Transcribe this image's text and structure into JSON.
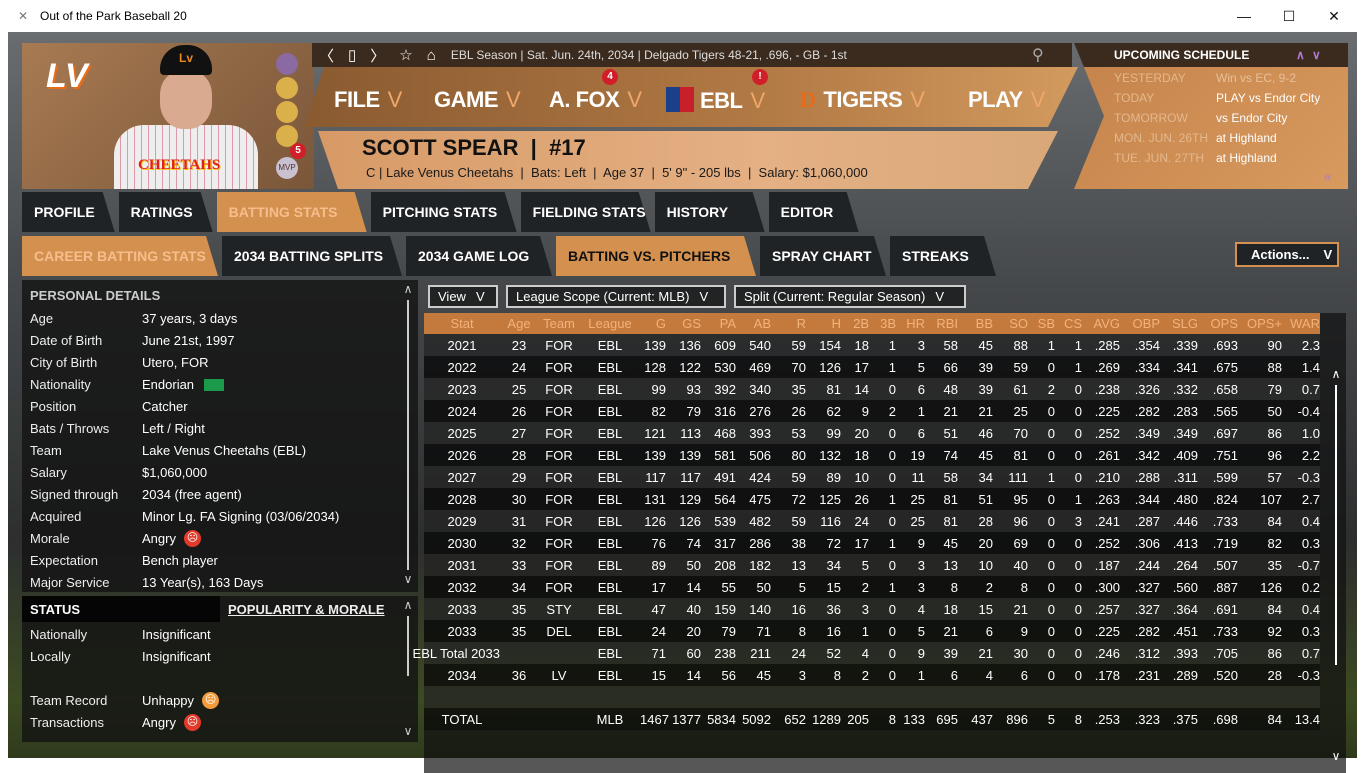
{
  "window": {
    "title": "Out of the Park Baseball 20",
    "minimize": "—",
    "maximize": "☐",
    "close": "✕"
  },
  "topbar": {
    "back": "〈",
    "page": "▯",
    "forward": "〉",
    "star": "☆",
    "home": "⌂",
    "status": "EBL Season  |  Sat. Jun. 24th, 2034  |  Delgado Tigers  48-21, .696, - GB - 1st",
    "search": "⚲"
  },
  "logo": "LV",
  "portrait": {
    "cap_logo": "Lv",
    "jersey_text": "CHEETAHS",
    "award_count": "5",
    "award_mvp": "MVP"
  },
  "menu": [
    {
      "label": "FILE",
      "chev": "V"
    },
    {
      "label": "GAME",
      "chev": "V"
    },
    {
      "label": "A. FOX",
      "chev": "V",
      "badge": "4"
    },
    {
      "label": "EBL",
      "chev": "V",
      "badge": "!"
    },
    {
      "label": "TIGERS",
      "chev": "V"
    },
    {
      "label": "PLAY",
      "chev": "V"
    }
  ],
  "player": {
    "name": "SCOTT SPEAR  |  #17",
    "info": "C | Lake Venus Cheetahs  |  Bats: Left  |  Age 37  |  5' 9\" - 205 lbs  |  Salary: $1,060,000"
  },
  "schedule": {
    "title": "UPCOMING SCHEDULE",
    "up": "∧",
    "down": "∨",
    "collapse": "«",
    "rows": [
      {
        "day": "YESTERDAY",
        "value": "Win vs EC, 9-2"
      },
      {
        "day": "TODAY",
        "value": "PLAY vs Endor City"
      },
      {
        "day": "TOMORROW",
        "value": "vs Endor City"
      },
      {
        "day": "MON. JUN. 26TH",
        "value": "at Highland"
      },
      {
        "day": "TUE. JUN. 27TH",
        "value": "at Highland"
      }
    ]
  },
  "tabs": [
    "PROFILE",
    "RATINGS",
    "BATTING STATS",
    "PITCHING STATS",
    "FIELDING STATS",
    "HISTORY",
    "EDITOR"
  ],
  "subtabs": [
    "CAREER BATTING STATS",
    "2034 BATTING SPLITS",
    "2034 GAME LOG",
    "BATTING VS. PITCHERS",
    "SPRAY CHART",
    "STREAKS"
  ],
  "actions": {
    "label": "Actions...",
    "chev": "V"
  },
  "personal": {
    "title": "PERSONAL DETAILS",
    "rows": [
      {
        "k": "Age",
        "v": "37 years, 3 days"
      },
      {
        "k": "Date of Birth",
        "v": "June 21st, 1997"
      },
      {
        "k": "City of Birth",
        "v": "Utero, FOR"
      },
      {
        "k": "Nationality",
        "v": "Endorian"
      },
      {
        "k": "Position",
        "v": "Catcher"
      },
      {
        "k": "Bats / Throws",
        "v": "Left / Right"
      },
      {
        "k": "Team",
        "v": "Lake Venus Cheetahs (EBL)"
      },
      {
        "k": "Salary",
        "v": "$1,060,000"
      },
      {
        "k": "Signed through",
        "v": "2034 (free agent)"
      },
      {
        "k": "Acquired",
        "v": "Minor Lg. FA Signing (03/06/2034)"
      },
      {
        "k": "Morale",
        "v": "Angry"
      },
      {
        "k": "Expectation",
        "v": "Bench player"
      },
      {
        "k": "Major Service",
        "v": "13 Year(s), 163 Days"
      }
    ]
  },
  "status": {
    "title": "STATUS",
    "link": "POPULARITY & MORALE",
    "rows": [
      {
        "k": "Nationally",
        "v": "Insignificant"
      },
      {
        "k": "Locally",
        "v": "Insignificant"
      },
      {
        "k": "Team Record",
        "v": "Unhappy"
      },
      {
        "k": "Transactions",
        "v": "Angry"
      }
    ]
  },
  "filters": {
    "view": "View",
    "scope": "League Scope (Current: MLB)",
    "split": "Split (Current: Regular Season)",
    "chev": "V"
  },
  "colors": {
    "accent": "#d4904e",
    "header": "#c47a3c",
    "angry": "#e23a2a",
    "unhappy": "#f29a3c"
  },
  "stats": {
    "columns": [
      "Stat",
      "Age",
      "Team",
      "League",
      "G",
      "GS",
      "PA",
      "AB",
      "R",
      "H",
      "2B",
      "3B",
      "HR",
      "RBI",
      "BB",
      "SO",
      "SB",
      "CS",
      "AVG",
      "OBP",
      "SLG",
      "OPS",
      "OPS+",
      "WAR"
    ],
    "rows": [
      [
        "2021",
        "23",
        "FOR",
        "EBL",
        "139",
        "136",
        "609",
        "540",
        "59",
        "154",
        "18",
        "1",
        "3",
        "58",
        "45",
        "88",
        "1",
        "1",
        ".285",
        ".354",
        ".339",
        ".693",
        "90",
        "2.3"
      ],
      [
        "2022",
        "24",
        "FOR",
        "EBL",
        "128",
        "122",
        "530",
        "469",
        "70",
        "126",
        "17",
        "1",
        "5",
        "66",
        "39",
        "59",
        "0",
        "1",
        ".269",
        ".334",
        ".341",
        ".675",
        "88",
        "1.4"
      ],
      [
        "2023",
        "25",
        "FOR",
        "EBL",
        "99",
        "93",
        "392",
        "340",
        "35",
        "81",
        "14",
        "0",
        "6",
        "48",
        "39",
        "61",
        "2",
        "0",
        ".238",
        ".326",
        ".332",
        ".658",
        "79",
        "0.7"
      ],
      [
        "2024",
        "26",
        "FOR",
        "EBL",
        "82",
        "79",
        "316",
        "276",
        "26",
        "62",
        "9",
        "2",
        "1",
        "21",
        "21",
        "25",
        "0",
        "0",
        ".225",
        ".282",
        ".283",
        ".565",
        "50",
        "-0.4"
      ],
      [
        "2025",
        "27",
        "FOR",
        "EBL",
        "121",
        "113",
        "468",
        "393",
        "53",
        "99",
        "20",
        "0",
        "6",
        "51",
        "46",
        "70",
        "0",
        "0",
        ".252",
        ".349",
        ".349",
        ".697",
        "86",
        "1.0"
      ],
      [
        "2026",
        "28",
        "FOR",
        "EBL",
        "139",
        "139",
        "581",
        "506",
        "80",
        "132",
        "18",
        "0",
        "19",
        "74",
        "45",
        "81",
        "0",
        "0",
        ".261",
        ".342",
        ".409",
        ".751",
        "96",
        "2.2"
      ],
      [
        "2027",
        "29",
        "FOR",
        "EBL",
        "117",
        "117",
        "491",
        "424",
        "59",
        "89",
        "10",
        "0",
        "11",
        "58",
        "34",
        "111",
        "1",
        "0",
        ".210",
        ".288",
        ".311",
        ".599",
        "57",
        "-0.3"
      ],
      [
        "2028",
        "30",
        "FOR",
        "EBL",
        "131",
        "129",
        "564",
        "475",
        "72",
        "125",
        "26",
        "1",
        "25",
        "81",
        "51",
        "95",
        "0",
        "1",
        ".263",
        ".344",
        ".480",
        ".824",
        "107",
        "2.7"
      ],
      [
        "2029",
        "31",
        "FOR",
        "EBL",
        "126",
        "126",
        "539",
        "482",
        "59",
        "116",
        "24",
        "0",
        "25",
        "81",
        "28",
        "96",
        "0",
        "3",
        ".241",
        ".287",
        ".446",
        ".733",
        "84",
        "0.4"
      ],
      [
        "2030",
        "32",
        "FOR",
        "EBL",
        "76",
        "74",
        "317",
        "286",
        "38",
        "72",
        "17",
        "1",
        "9",
        "45",
        "20",
        "69",
        "0",
        "0",
        ".252",
        ".306",
        ".413",
        ".719",
        "82",
        "0.3"
      ],
      [
        "2031",
        "33",
        "FOR",
        "EBL",
        "89",
        "50",
        "208",
        "182",
        "13",
        "34",
        "5",
        "0",
        "3",
        "13",
        "10",
        "40",
        "0",
        "0",
        ".187",
        ".244",
        ".264",
        ".507",
        "35",
        "-0.7"
      ],
      [
        "2032",
        "34",
        "FOR",
        "EBL",
        "17",
        "14",
        "55",
        "50",
        "5",
        "15",
        "2",
        "1",
        "3",
        "8",
        "2",
        "8",
        "0",
        "0",
        ".300",
        ".327",
        ".560",
        ".887",
        "126",
        "0.2"
      ],
      [
        "2033",
        "35",
        "STY",
        "EBL",
        "47",
        "40",
        "159",
        "140",
        "16",
        "36",
        "3",
        "0",
        "4",
        "18",
        "15",
        "21",
        "0",
        "0",
        ".257",
        ".327",
        ".364",
        ".691",
        "84",
        "0.4"
      ],
      [
        "2033",
        "35",
        "DEL",
        "EBL",
        "24",
        "20",
        "79",
        "71",
        "8",
        "16",
        "1",
        "0",
        "5",
        "21",
        "6",
        "9",
        "0",
        "0",
        ".225",
        ".282",
        ".451",
        ".733",
        "92",
        "0.3"
      ],
      [
        "EBL Total 2033",
        "",
        "",
        "EBL",
        "71",
        "60",
        "238",
        "211",
        "24",
        "52",
        "4",
        "0",
        "9",
        "39",
        "21",
        "30",
        "0",
        "0",
        ".246",
        ".312",
        ".393",
        ".705",
        "86",
        "0.7"
      ],
      [
        "2034",
        "36",
        "LV",
        "EBL",
        "15",
        "14",
        "56",
        "45",
        "3",
        "8",
        "2",
        "0",
        "1",
        "6",
        "4",
        "6",
        "0",
        "0",
        ".178",
        ".231",
        ".289",
        ".520",
        "28",
        "-0.3"
      ],
      [
        "",
        "",
        "",
        "",
        "",
        "",
        "",
        "",
        "",
        "",
        "",
        "",
        "",
        "",
        "",
        "",
        "",
        "",
        "",
        "",
        "",
        "",
        "",
        ""
      ],
      [
        "TOTAL",
        "",
        "",
        "MLB",
        "1467",
        "1377",
        "5834",
        "5092",
        "652",
        "1289",
        "205",
        "8",
        "133",
        "695",
        "437",
        "896",
        "5",
        "8",
        ".253",
        ".323",
        ".375",
        ".698",
        "84",
        "13.4"
      ]
    ]
  }
}
